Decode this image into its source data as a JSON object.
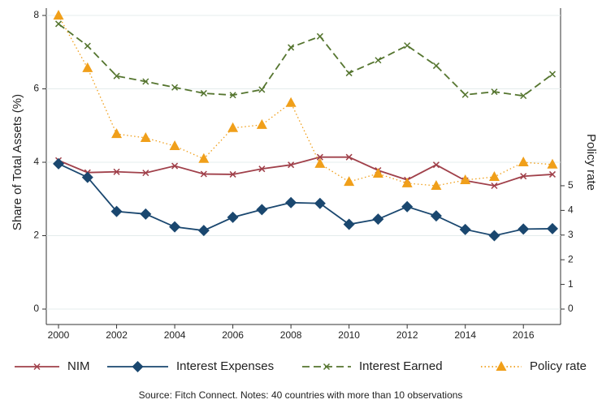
{
  "chart_data": {
    "type": "line",
    "ylabel": "Share of Total Assets (%)",
    "y2label": "Policy rate",
    "source": "Source: Fitch Connect. Notes: 40 countries with more than 10 observations",
    "x": [
      2000,
      2001,
      2002,
      2003,
      2004,
      2005,
      2006,
      2007,
      2008,
      2009,
      2010,
      2011,
      2012,
      2013,
      2014,
      2015,
      2016,
      2017
    ],
    "xlim": [
      1999.58,
      2017.28
    ],
    "xticks": [
      2000,
      2002,
      2004,
      2006,
      2008,
      2010,
      2012,
      2014,
      2016
    ],
    "ylim": [
      -0.42,
      8.2
    ],
    "yticks": [
      0,
      2,
      4,
      6,
      8
    ],
    "y2lim": [
      -0.625,
      12.2
    ],
    "y2ticks": [
      0,
      1,
      2,
      3,
      4,
      5
    ],
    "grid": true,
    "series": [
      {
        "name": "NIM",
        "color": "#a0404a",
        "style": "solid",
        "marker": "x",
        "values": [
          4.05,
          3.72,
          3.74,
          3.71,
          3.9,
          3.68,
          3.67,
          3.82,
          3.93,
          4.14,
          4.14,
          3.78,
          3.52,
          3.93,
          3.5,
          3.36,
          3.62,
          3.67
        ]
      },
      {
        "name": "Interest Expenses",
        "color": "#1a476f",
        "style": "solid",
        "marker": "diamond",
        "values": [
          3.96,
          3.59,
          2.66,
          2.59,
          2.24,
          2.14,
          2.5,
          2.71,
          2.9,
          2.88,
          2.31,
          2.45,
          2.79,
          2.54,
          2.17,
          2.0,
          2.18,
          2.19
        ]
      },
      {
        "name": "Interest Earned",
        "color": "#55752f",
        "style": "dashed",
        "marker": "x",
        "values": [
          7.77,
          7.17,
          6.35,
          6.2,
          6.04,
          5.88,
          5.83,
          5.98,
          7.13,
          7.43,
          6.43,
          6.78,
          7.18,
          6.63,
          5.84,
          5.92,
          5.81,
          6.4
        ]
      },
      {
        "name": "Policy rate",
        "color": "#f09f1a",
        "style": "dotted",
        "marker": "triangle",
        "axis": "y2",
        "values": [
          11.9,
          9.77,
          7.1,
          6.94,
          6.61,
          6.09,
          7.34,
          7.47,
          8.36,
          5.89,
          5.16,
          5.49,
          5.1,
          5.0,
          5.23,
          5.36,
          5.95,
          5.86
        ]
      }
    ]
  }
}
